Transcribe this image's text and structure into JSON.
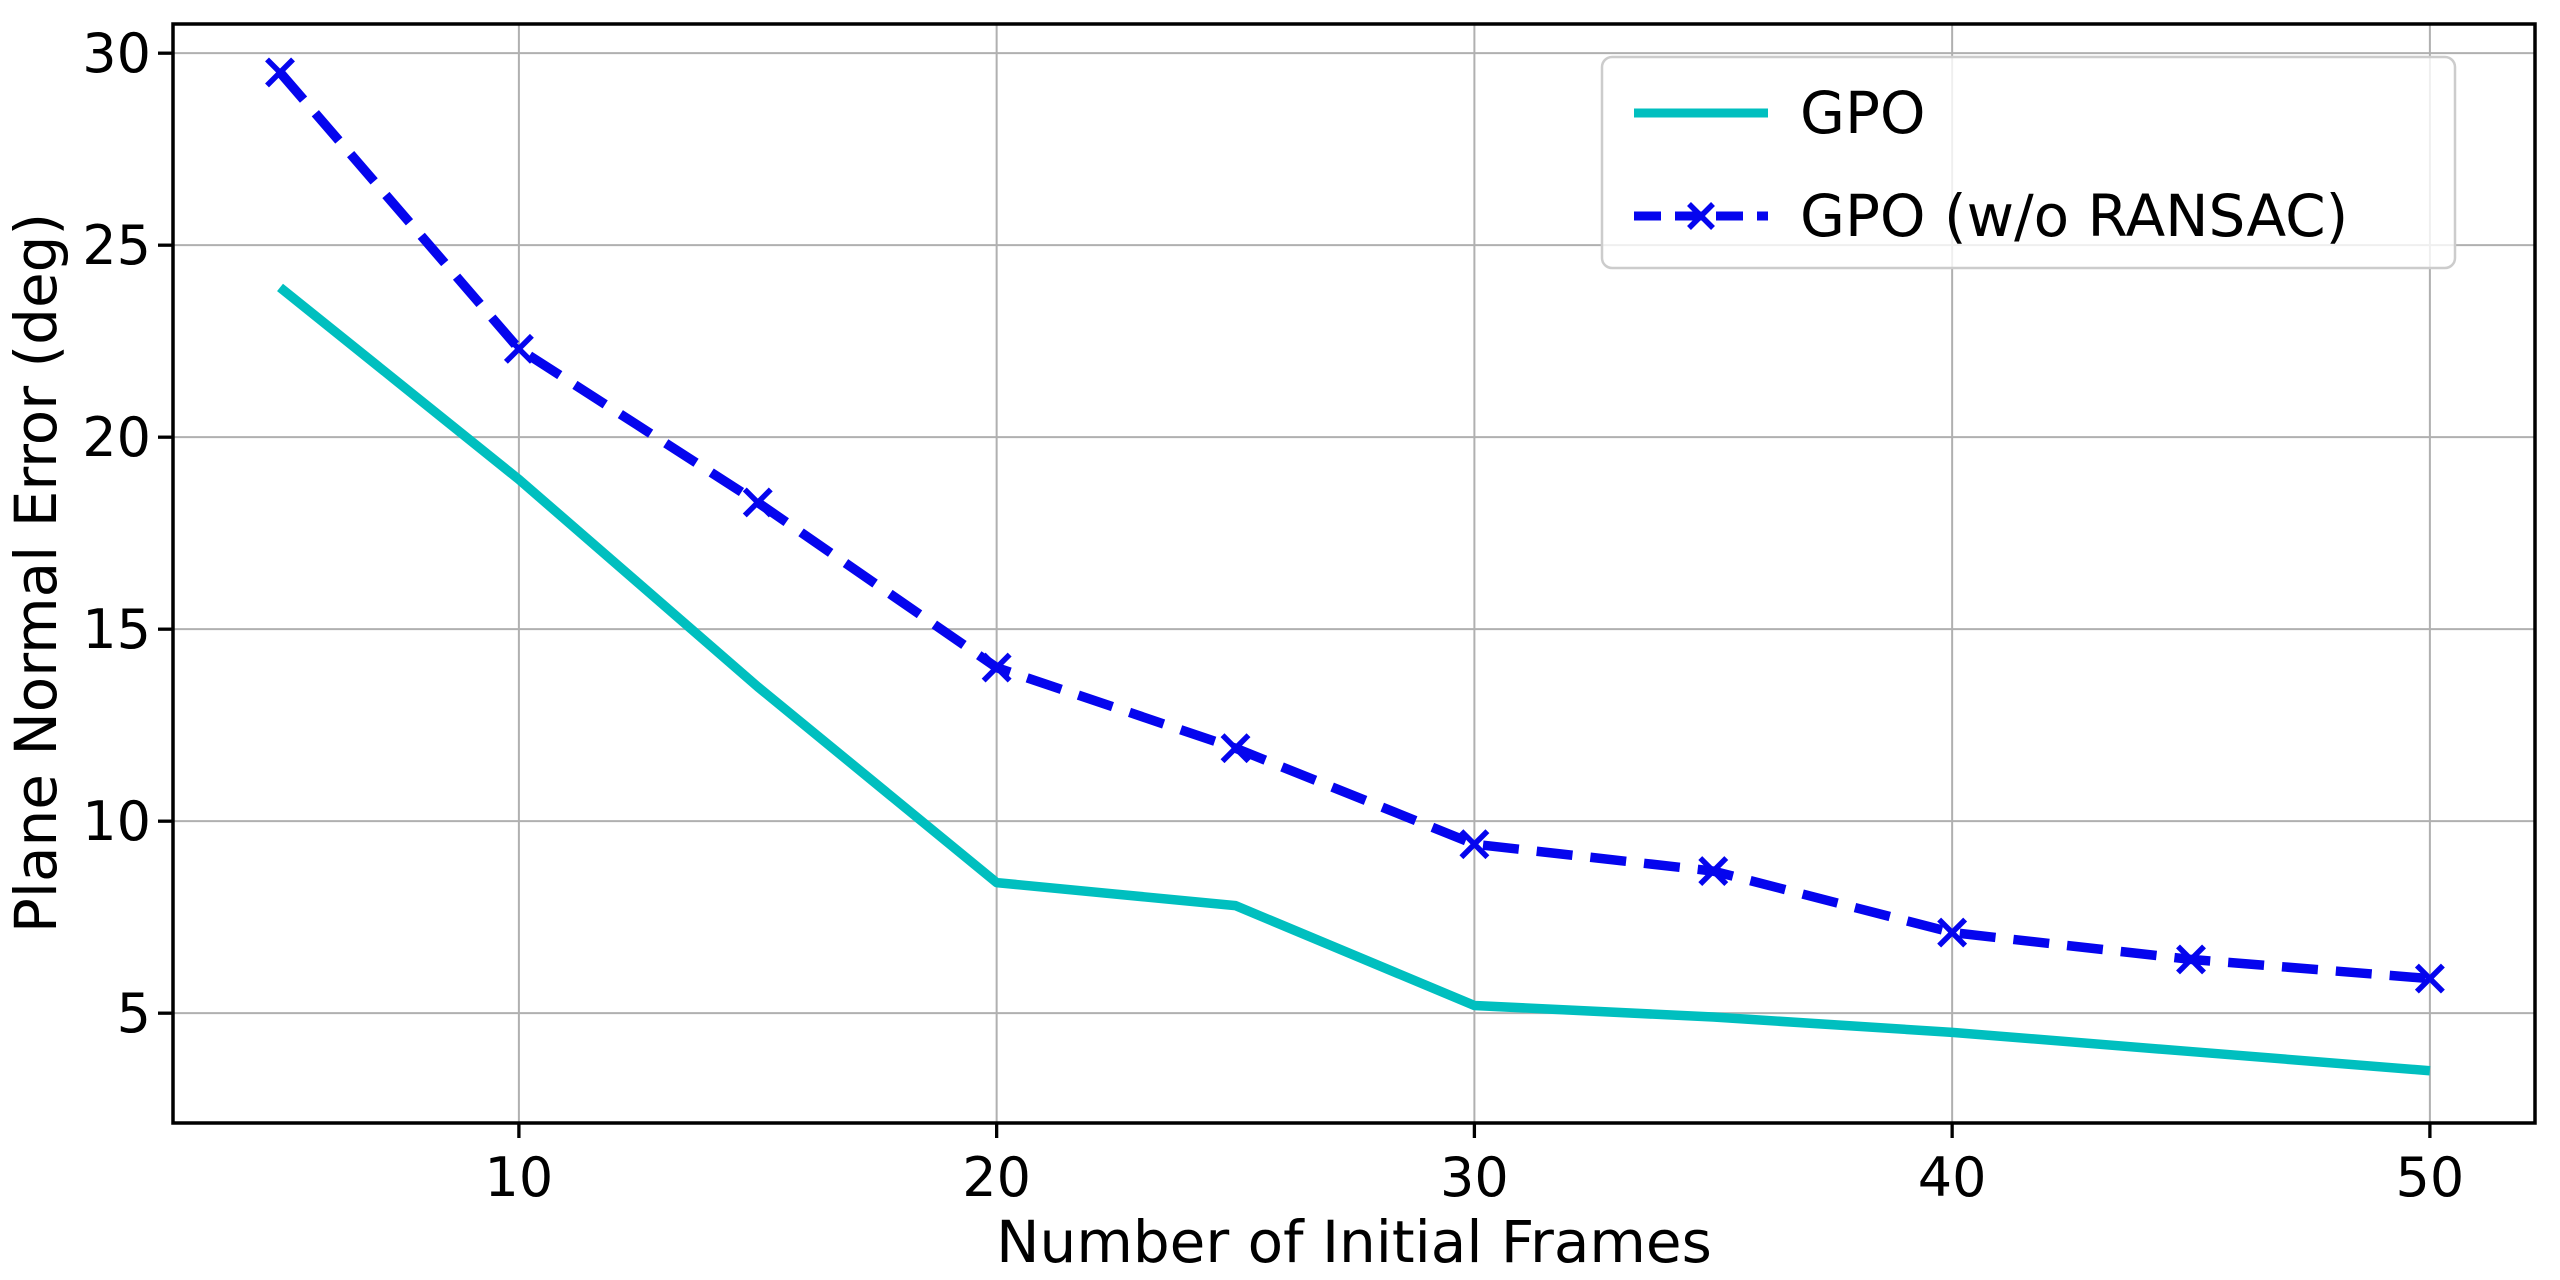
{
  "chart_data": {
    "type": "line",
    "x": [
      5,
      10,
      15,
      20,
      25,
      30,
      35,
      40,
      45,
      50
    ],
    "series": [
      {
        "name": "GPO",
        "color": "#00bfbf",
        "line_style": "solid",
        "marker": "none",
        "values": [
          23.9,
          18.9,
          13.5,
          8.4,
          7.8,
          5.2,
          4.9,
          4.5,
          4.0,
          3.5
        ]
      },
      {
        "name": "GPO (w/o RANSAC)",
        "color": "#0505ee",
        "line_style": "dashed",
        "marker": "x",
        "values": [
          29.5,
          22.3,
          18.3,
          14.0,
          11.9,
          9.4,
          8.7,
          7.1,
          6.4,
          5.9
        ]
      }
    ],
    "title": "",
    "xlabel": "Number of Initial Frames",
    "ylabel": "Plane Normal Error (deg)",
    "xticks": [
      10,
      20,
      30,
      40,
      50
    ],
    "yticks": [
      5,
      10,
      15,
      20,
      25,
      30
    ],
    "xlim": [
      2.76,
      52.2
    ],
    "ylim": [
      2.14,
      30.76
    ],
    "grid": true,
    "grid_color": "#b0b0b0",
    "spine_color": "#000000",
    "legend_position": "upper right"
  }
}
